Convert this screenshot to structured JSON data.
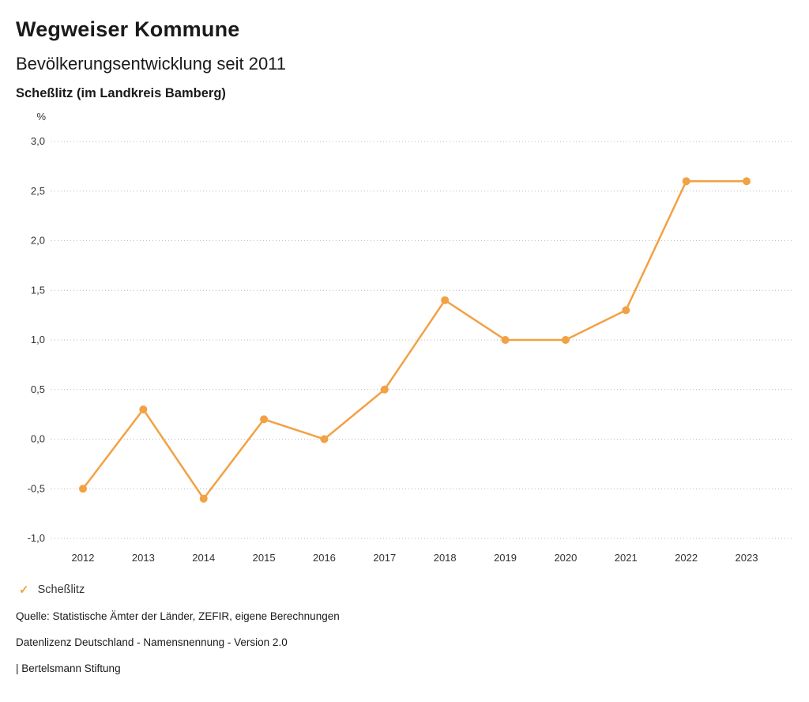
{
  "header": {
    "title": "Wegweiser Kommune",
    "subtitle": "Bevölkerungsentwicklung seit 2011",
    "region": "Scheßlitz (im Landkreis Bamberg)"
  },
  "legend": {
    "check_icon": "✓",
    "label": "Scheßlitz"
  },
  "footer": {
    "source": "Quelle: Statistische Ämter der Länder, ZEFIR, eigene Berechnungen",
    "license": "Datenlizenz Deutschland - Namensnennung - Version 2.0",
    "attribution": "| Bertelsmann Stiftung"
  },
  "colors": {
    "series": "#f2a143",
    "grid": "#b8b8b8"
  },
  "chart_data": {
    "type": "line",
    "title": "Bevölkerungsentwicklung seit 2011",
    "unit_label": "%",
    "xlabel": "",
    "ylabel": "%",
    "categories": [
      "2012",
      "2013",
      "2014",
      "2015",
      "2016",
      "2017",
      "2018",
      "2019",
      "2020",
      "2021",
      "2022",
      "2023"
    ],
    "series": [
      {
        "name": "Scheßlitz",
        "color": "#f2a143",
        "values": [
          -0.5,
          0.3,
          -0.6,
          0.2,
          0.0,
          0.5,
          1.4,
          1.0,
          1.0,
          1.3,
          2.6,
          2.6
        ]
      }
    ],
    "ylim": [
      -1.0,
      3.0
    ],
    "ytick_step": 0.5,
    "grid": "horizontal-dotted",
    "legend_position": "bottom-left",
    "decimal_separator": ","
  }
}
